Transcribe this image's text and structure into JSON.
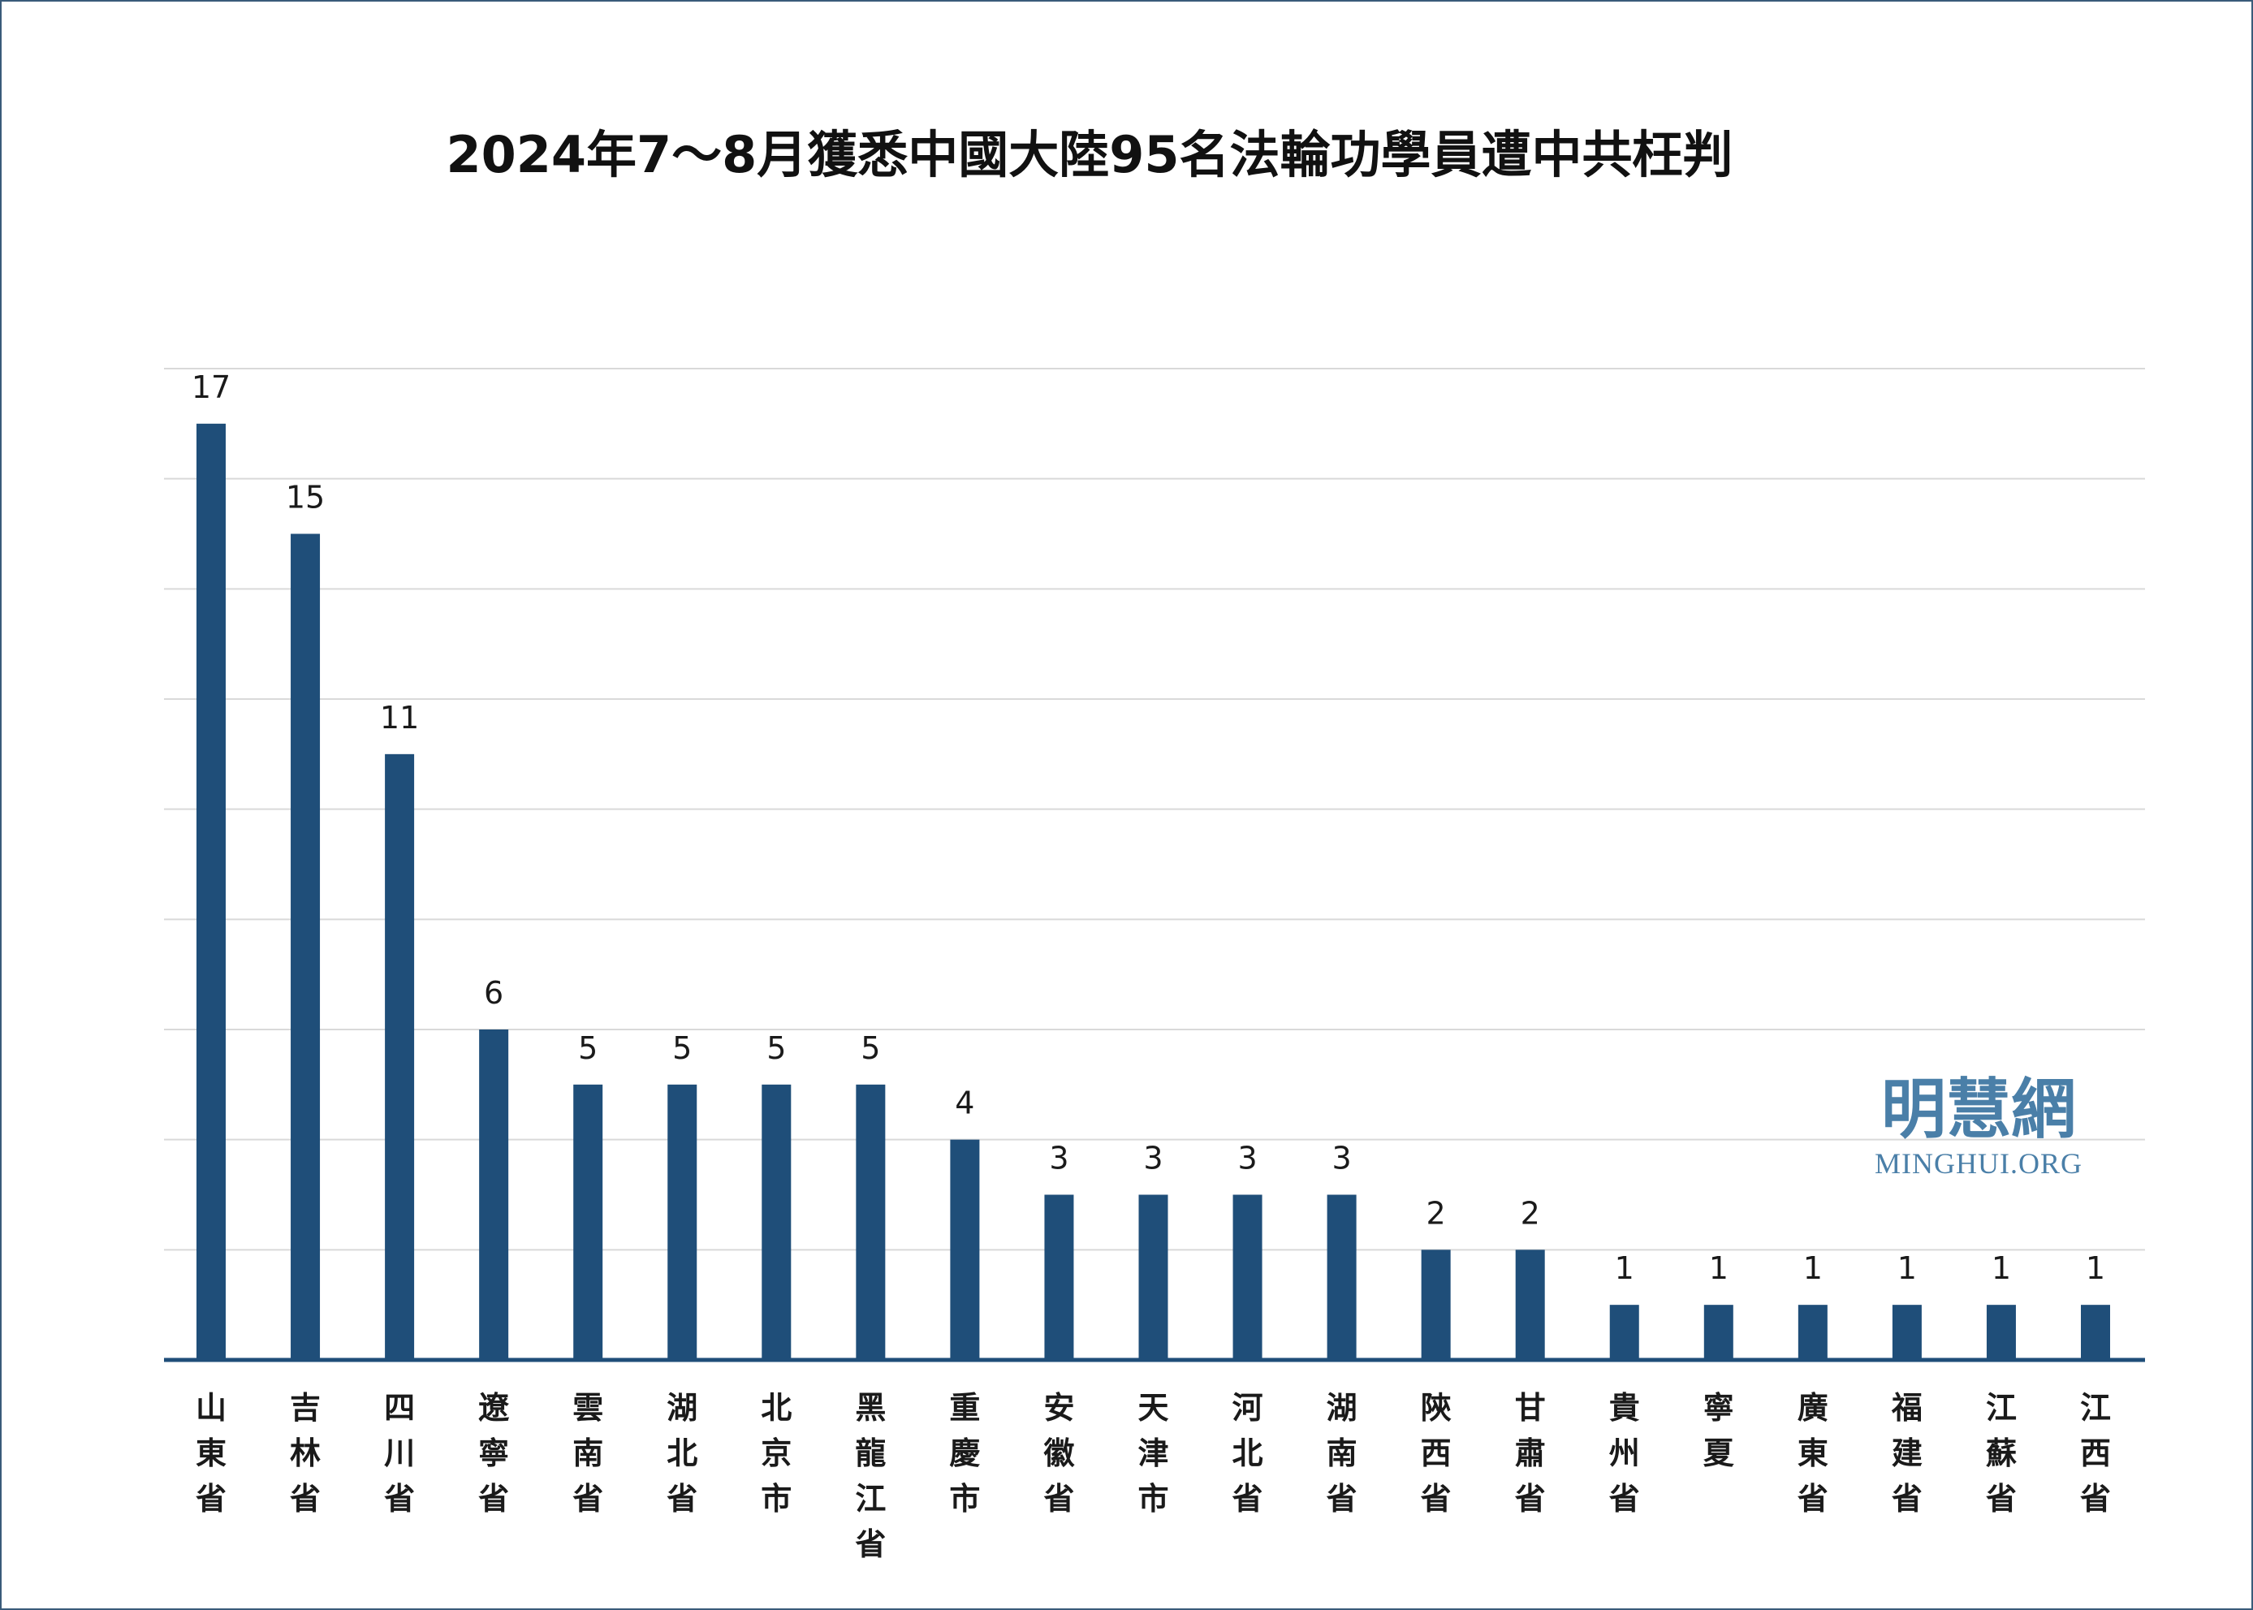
{
  "chart_data": {
    "type": "bar",
    "title": "2024年7～8月獲悉中國大陸95名法輪功學員遭中共枉判",
    "categories": [
      "山東省",
      "吉林省",
      "四川省",
      "遼寧省",
      "雲南省",
      "湖北省",
      "北京市",
      "黑龍江省",
      "重慶市",
      "安徽省",
      "天津市",
      "河北省",
      "湖南省",
      "陝西省",
      "甘肅省",
      "貴州省",
      "寧夏",
      "廣東省",
      "福建省",
      "江蘇省",
      "江西省"
    ],
    "values": [
      17,
      15,
      11,
      6,
      5,
      5,
      5,
      5,
      4,
      3,
      3,
      3,
      3,
      2,
      2,
      1,
      1,
      1,
      1,
      1,
      1
    ],
    "ylim": [
      0,
      18
    ],
    "grid": true,
    "xlabel": "",
    "ylabel": "",
    "colors": {
      "bar": "#1f4e79",
      "grid": "#d9d9d9",
      "axis": "#1f4e79"
    }
  },
  "watermark": {
    "chinese": "明慧網",
    "english": "MINGHUI.ORG",
    "color": "#4a7fa8"
  }
}
